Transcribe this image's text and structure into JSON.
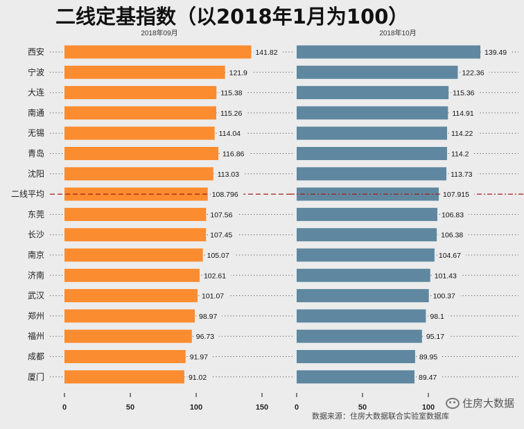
{
  "title": "二线定基指数（以2018年1月为100）",
  "footer": "数据来源：住房大数据联合实验室数据库",
  "watermark": {
    "text": "住房大数据",
    "url": "www.zfdsj.org",
    "icon": "wechat-icon"
  },
  "colors": {
    "left": "#fb8c30",
    "right": "#5f88a0",
    "ref_line": "#a31a1a",
    "background": "#ececec"
  },
  "chart_data": [
    {
      "type": "bar",
      "orientation": "horizontal",
      "title": "2018年09月",
      "categories": [
        "西安",
        "宁波",
        "大连",
        "南通",
        "无锡",
        "青岛",
        "沈阳",
        "二线平均",
        "东莞",
        "长沙",
        "南京",
        "济南",
        "武汉",
        "郑州",
        "福州",
        "成都",
        "厦门"
      ],
      "values": [
        141.82,
        121.9,
        115.38,
        115.26,
        114.04,
        116.86,
        113.03,
        108.796,
        107.56,
        107.45,
        105.07,
        102.61,
        101.07,
        98.97,
        96.73,
        91.97,
        91.02
      ],
      "value_labels": [
        "141.82",
        "121.9",
        "115.38",
        "115.26",
        "114.04",
        "116.86",
        "113.03",
        "108.796",
        "107.56",
        "107.45",
        "105.07",
        "102.61",
        "101.07",
        "98.97",
        "96.73",
        "91.97",
        "91.02"
      ],
      "xlim": [
        0,
        150
      ],
      "xticks": [
        0,
        50,
        100,
        150
      ],
      "reference_category": "二线平均"
    },
    {
      "type": "bar",
      "orientation": "horizontal",
      "title": "2018年10月",
      "categories": [
        "西安",
        "宁波",
        "大连",
        "南通",
        "无锡",
        "青岛",
        "沈阳",
        "二线平均",
        "东莞",
        "长沙",
        "南京",
        "济南",
        "武汉",
        "郑州",
        "福州",
        "成都",
        "厦门"
      ],
      "values": [
        139.49,
        122.36,
        115.36,
        114.91,
        114.22,
        114.2,
        113.73,
        107.915,
        106.83,
        106.38,
        104.67,
        101.43,
        100.37,
        98.1,
        95.17,
        89.95,
        89.47
      ],
      "value_labels": [
        "139.49",
        "122.36",
        "115.36",
        "114.91",
        "114.22",
        "114.2",
        "113.73",
        "107.915",
        "106.83",
        "106.38",
        "104.67",
        "101.43",
        "100.37",
        "98.1",
        "95.17",
        "89.95",
        "89.47"
      ],
      "xlim": [
        0,
        150
      ],
      "xticks": [
        0,
        50,
        100
      ],
      "reference_category": "二线平均"
    }
  ]
}
